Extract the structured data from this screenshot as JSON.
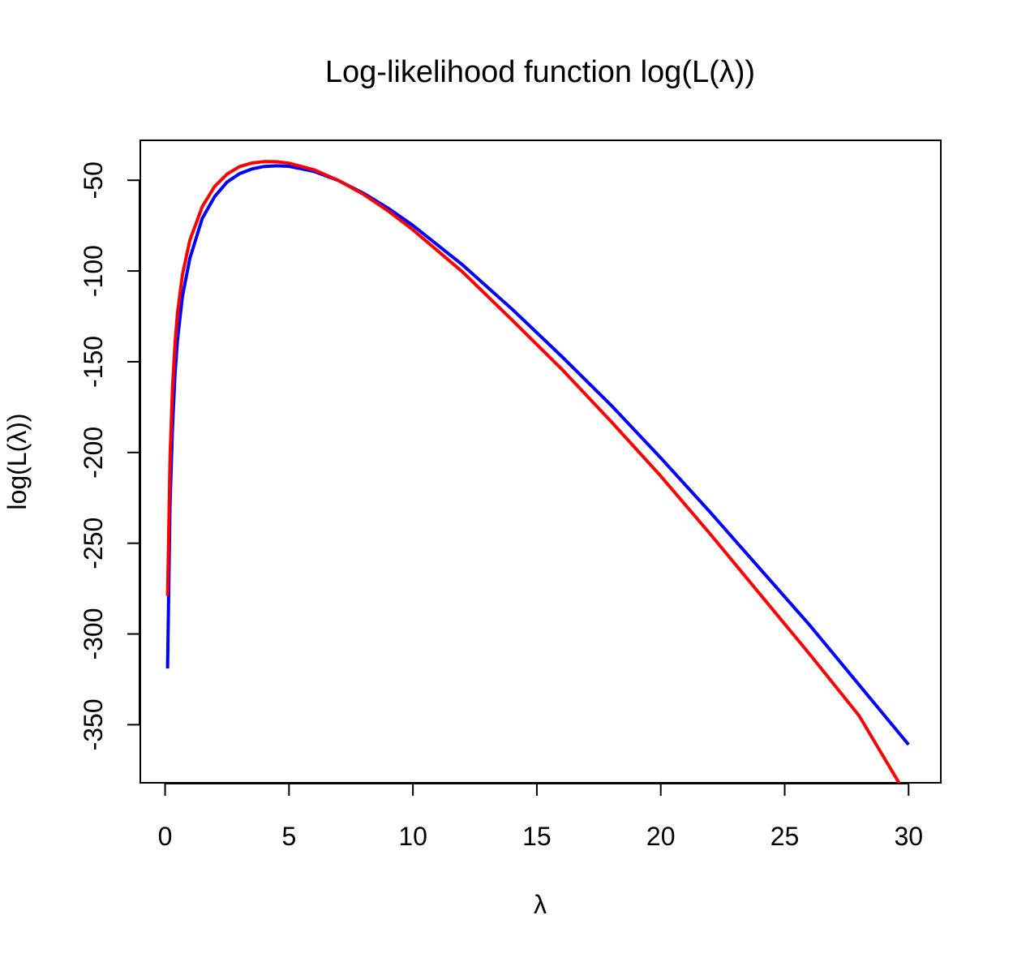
{
  "chart_data": {
    "type": "line",
    "title": "Log-likelihood function log(L(λ))",
    "xlabel": "λ",
    "ylabel": "log(L(λ))",
    "xlim": [
      -1,
      31.3
    ],
    "ylim": [
      -382,
      -28
    ],
    "x_ticks": [
      0,
      5,
      10,
      15,
      20,
      25,
      30
    ],
    "y_ticks": [
      -50,
      -100,
      -150,
      -200,
      -250,
      -300,
      -350
    ],
    "grid": false,
    "legend": "none",
    "series": [
      {
        "color": "#0000FF",
        "x": [
          0.1,
          0.2,
          0.3,
          0.4,
          0.5,
          0.7,
          1,
          1.5,
          2,
          2.5,
          3,
          3.5,
          4,
          4.5,
          5,
          6,
          7,
          8,
          9,
          10,
          12,
          14,
          16,
          18,
          20,
          22,
          24,
          26,
          28,
          30
        ],
        "values": [
          -319,
          -228,
          -186,
          -157,
          -138,
          -114,
          -93,
          -71,
          -59,
          -51,
          -46.4,
          -43.8,
          -42.4,
          -42.0,
          -42.3,
          -45.1,
          -50.2,
          -57.1,
          -65.4,
          -74.9,
          -96.6,
          -121,
          -147,
          -174,
          -203,
          -233,
          -264,
          -295,
          -328,
          -361
        ]
      },
      {
        "color": "#FF0000",
        "x": [
          0.1,
          0.2,
          0.3,
          0.4,
          0.5,
          0.7,
          1,
          1.5,
          2,
          2.5,
          3,
          3.5,
          4,
          4.5,
          5,
          6,
          7,
          8,
          9,
          10,
          12,
          14,
          16,
          18,
          20,
          22,
          24,
          26,
          28,
          29.7
        ],
        "values": [
          -279,
          -203,
          -164,
          -140,
          -123,
          -102,
          -83,
          -64.5,
          -53.4,
          -46.6,
          -42.5,
          -40.5,
          -39.7,
          -39.8,
          -40.6,
          -44.2,
          -50.1,
          -57.7,
          -66.9,
          -77.3,
          -100.5,
          -127,
          -154,
          -183,
          -213,
          -245,
          -278,
          -311,
          -345,
          -384
        ]
      }
    ]
  }
}
